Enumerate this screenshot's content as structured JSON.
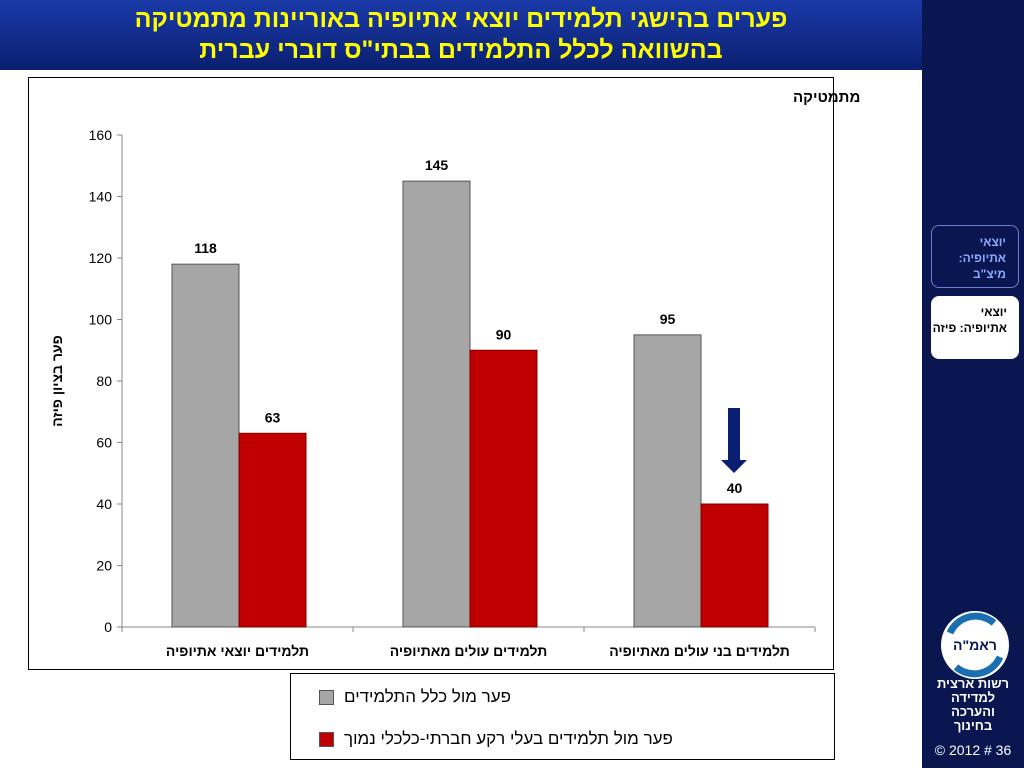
{
  "title": [
    "פערים בהישגי תלמידים יוצאי אתיופיה באוריינות מתמטיקה",
    "בהשוואה לכלל התלמידים בבתי\"ס דוברי עברית"
  ],
  "sidebar": {
    "tabs": [
      "יוצאי אתיופיה: מיצ\"ב",
      "יוצאי אתיופיה: פיזה"
    ],
    "logo": "ראמ\"ה",
    "org": [
      "רשות ארצית",
      "למדידה",
      "והערכה",
      "בחינוך"
    ],
    "footer": "© 2012 # 36"
  },
  "chart_data": {
    "type": "bar",
    "subtitle": "מתמטיקה",
    "y_label": "פער בציון פיזה",
    "categories": [
      "תלמידים יוצאי אתיופיה",
      "תלמידים עולים מאתיופיה",
      "תלמידים בני עולים מאתיופיה"
    ],
    "series": [
      {
        "name": "פער מול כלל התלמידים",
        "color": "#a6a6a6",
        "values": [
          118,
          145,
          95
        ]
      },
      {
        "name": "פער מול תלמידים בעלי רקע חברתי-כלכלי נמוך",
        "color": "#c00000",
        "values": [
          63,
          90,
          40
        ]
      }
    ],
    "ylim": [
      0,
      160
    ],
    "yticks": [
      0,
      20,
      40,
      60,
      80,
      100,
      120,
      140,
      160
    ],
    "legend": "bottom"
  }
}
